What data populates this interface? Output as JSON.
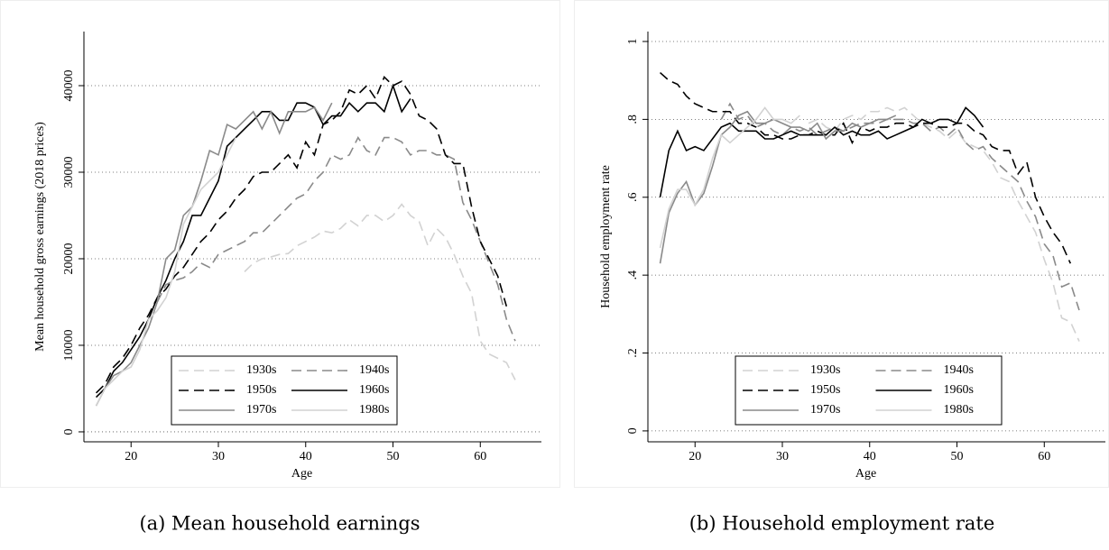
{
  "chart_data": [
    {
      "type": "line",
      "caption": "(a) Mean household earnings",
      "xlabel": "Age",
      "ylabel": "Mean household gross earnings (2018 prices)",
      "x": [
        16,
        17,
        18,
        19,
        20,
        21,
        22,
        23,
        24,
        25,
        26,
        27,
        28,
        29,
        30,
        31,
        32,
        33,
        34,
        35,
        36,
        37,
        38,
        39,
        40,
        41,
        42,
        43,
        44,
        45,
        46,
        47,
        48,
        49,
        50,
        51,
        52,
        53,
        54,
        55,
        56,
        57,
        58,
        59,
        60,
        61,
        62,
        63,
        64
      ],
      "xlim": [
        14.6,
        67
      ],
      "xticks": [
        20,
        30,
        40,
        50,
        60
      ],
      "ylim": [
        -1150,
        46250
      ],
      "yticks": [
        0,
        10000,
        20000,
        30000,
        40000
      ],
      "grid": true,
      "legend": "lower center",
      "series": [
        {
          "name": "1930s",
          "color": "#d2d2d2",
          "style": "dashed",
          "values": [
            null,
            null,
            null,
            null,
            null,
            null,
            null,
            null,
            null,
            null,
            null,
            null,
            null,
            null,
            null,
            null,
            null,
            18500,
            19500,
            20000,
            20200,
            20500,
            20600,
            21500,
            22000,
            22500,
            23200,
            23000,
            23500,
            24500,
            23800,
            25000,
            25000,
            24300,
            25000,
            26300,
            25000,
            24300,
            21500,
            23500,
            22500,
            20500,
            18000,
            16000,
            10500,
            9000,
            8500,
            8000,
            6000
          ]
        },
        {
          "name": "1940s",
          "color": "#8a8a8a",
          "style": "dashed",
          "values": [
            null,
            null,
            null,
            null,
            null,
            null,
            null,
            15000,
            17000,
            17500,
            17800,
            18500,
            19500,
            19000,
            20500,
            21000,
            21500,
            22000,
            23000,
            23000,
            24000,
            25000,
            26000,
            27000,
            27500,
            29000,
            30000,
            32000,
            31500,
            32000,
            34000,
            32500,
            32000,
            34000,
            34000,
            33500,
            32000,
            32500,
            32500,
            32000,
            32000,
            31500,
            26500,
            24500,
            22000,
            19500,
            17000,
            13000,
            10500
          ]
        },
        {
          "name": "1950s",
          "color": "#000000",
          "style": "dashed",
          "values": [
            4500,
            5500,
            7500,
            8500,
            10000,
            12000,
            13500,
            15500,
            16500,
            18000,
            19000,
            20500,
            22000,
            23000,
            24500,
            25500,
            27000,
            28000,
            29500,
            30000,
            30000,
            31000,
            32000,
            30500,
            33500,
            32000,
            35500,
            36000,
            37000,
            39500,
            39000,
            40000,
            38500,
            41000,
            40000,
            40500,
            39000,
            36500,
            36000,
            35000,
            32000,
            31000,
            31000,
            26000,
            22000,
            20000,
            18000,
            14500,
            null
          ]
        },
        {
          "name": "1960s",
          "color": "#000000",
          "style": "solid",
          "values": [
            4000,
            5000,
            7000,
            8000,
            9500,
            11000,
            13000,
            15500,
            17500,
            20000,
            22000,
            25000,
            25000,
            27000,
            29000,
            33000,
            34000,
            35000,
            36000,
            37000,
            37000,
            36000,
            36000,
            38000,
            38000,
            37500,
            35500,
            36500,
            36500,
            38000,
            37000,
            38000,
            38000,
            37000,
            40000,
            37000,
            38500,
            null,
            null,
            null,
            null,
            null,
            null,
            null,
            null,
            null,
            null,
            null,
            null
          ]
        },
        {
          "name": "1970s",
          "color": "#8a8a8a",
          "style": "solid",
          "values": [
            3000,
            5000,
            6500,
            7000,
            8000,
            10000,
            12000,
            15000,
            20000,
            21000,
            25000,
            26000,
            29000,
            32500,
            32000,
            35500,
            35000,
            36000,
            37000,
            35000,
            37000,
            34500,
            37000,
            37000,
            37000,
            37500,
            36000,
            38000,
            null,
            null,
            null,
            null,
            null,
            null,
            null,
            null,
            null,
            null,
            null,
            null,
            null,
            null,
            null,
            null,
            null,
            null,
            null,
            null,
            null
          ]
        },
        {
          "name": "1980s",
          "color": "#d2d2d2",
          "style": "solid",
          "values": [
            3000,
            5000,
            6000,
            7000,
            7500,
            9500,
            13000,
            14000,
            15500,
            18500,
            24000,
            26000,
            28000,
            29000,
            30000,
            32000,
            34000,
            null,
            null,
            null,
            null,
            null,
            null,
            null,
            null,
            null,
            null,
            null,
            null,
            null,
            null,
            null,
            null,
            null,
            null,
            null,
            null,
            null,
            null,
            null,
            null,
            null,
            null,
            null,
            null,
            null,
            null,
            null,
            null
          ]
        }
      ]
    },
    {
      "type": "line",
      "caption": "(b) Household employment rate",
      "xlabel": "Age",
      "ylabel": "Household employment rate",
      "x": [
        16,
        17,
        18,
        19,
        20,
        21,
        22,
        23,
        24,
        25,
        26,
        27,
        28,
        29,
        30,
        31,
        32,
        33,
        34,
        35,
        36,
        37,
        38,
        39,
        40,
        41,
        42,
        43,
        44,
        45,
        46,
        47,
        48,
        49,
        50,
        51,
        52,
        53,
        54,
        55,
        56,
        57,
        58,
        59,
        60,
        61,
        62,
        63,
        64
      ],
      "xlim": [
        14.6,
        67
      ],
      "xticks": [
        20,
        30,
        40,
        50,
        60
      ],
      "ylim": [
        -0.028,
        1.0255
      ],
      "yticks": [
        0,
        {
          "value": 0.2,
          "label": ".2"
        },
        {
          "value": 0.4,
          "label": ".4"
        },
        {
          "value": 0.6,
          "label": ".6"
        },
        {
          "value": 0.8,
          "label": ".8"
        },
        1
      ],
      "grid": true,
      "legend": "lower center",
      "series": [
        {
          "name": "1930s",
          "color": "#d2d2d2",
          "style": "dashed",
          "values": [
            null,
            null,
            null,
            null,
            null,
            null,
            null,
            null,
            null,
            null,
            null,
            null,
            null,
            null,
            null,
            null,
            null,
            0.79,
            0.8,
            0.78,
            0.77,
            0.8,
            0.81,
            0.8,
            0.82,
            0.82,
            0.83,
            0.82,
            0.83,
            0.81,
            0.79,
            0.78,
            0.77,
            0.75,
            0.77,
            0.74,
            0.73,
            0.72,
            0.69,
            0.65,
            0.64,
            0.59,
            0.55,
            0.51,
            0.44,
            0.38,
            0.29,
            0.28,
            0.23
          ]
        },
        {
          "name": "1940s",
          "color": "#8a8a8a",
          "style": "dashed",
          "values": [
            null,
            null,
            null,
            null,
            null,
            null,
            null,
            0.8,
            0.84,
            0.8,
            0.81,
            0.78,
            0.79,
            0.77,
            0.76,
            0.78,
            0.77,
            0.78,
            0.76,
            0.77,
            0.78,
            0.77,
            0.78,
            0.79,
            0.79,
            0.79,
            0.8,
            0.8,
            0.8,
            0.79,
            0.79,
            0.77,
            0.78,
            0.76,
            0.78,
            0.74,
            0.72,
            0.73,
            0.7,
            0.68,
            0.66,
            0.64,
            0.59,
            0.55,
            0.48,
            0.45,
            0.37,
            0.38,
            0.31
          ]
        },
        {
          "name": "1950s",
          "color": "#000000",
          "style": "dashed",
          "values": [
            0.92,
            0.9,
            0.89,
            0.86,
            0.84,
            0.83,
            0.82,
            0.82,
            0.82,
            0.79,
            0.79,
            0.78,
            0.76,
            0.76,
            0.75,
            0.75,
            0.76,
            0.76,
            0.77,
            0.76,
            0.76,
            0.79,
            0.74,
            0.78,
            0.77,
            0.78,
            0.78,
            0.79,
            0.79,
            0.78,
            0.79,
            0.79,
            0.78,
            0.78,
            0.79,
            0.79,
            0.77,
            0.76,
            0.73,
            0.72,
            0.72,
            0.66,
            0.69,
            0.6,
            0.55,
            0.51,
            0.48,
            0.43,
            null
          ]
        },
        {
          "name": "1960s",
          "color": "#000000",
          "style": "solid",
          "values": [
            0.6,
            0.72,
            0.77,
            0.72,
            0.73,
            0.72,
            0.75,
            0.78,
            0.79,
            0.77,
            0.77,
            0.77,
            0.75,
            0.75,
            0.76,
            0.77,
            0.76,
            0.76,
            0.76,
            0.76,
            0.78,
            0.76,
            0.77,
            0.76,
            0.76,
            0.77,
            0.75,
            0.76,
            0.77,
            0.78,
            0.8,
            0.79,
            0.8,
            0.8,
            0.79,
            0.83,
            0.81,
            0.78,
            null,
            null,
            null,
            null,
            null,
            null,
            null,
            null,
            null,
            null,
            null
          ]
        },
        {
          "name": "1970s",
          "color": "#8a8a8a",
          "style": "solid",
          "values": [
            0.43,
            0.56,
            0.61,
            0.64,
            0.58,
            0.61,
            0.68,
            0.76,
            0.78,
            0.81,
            0.82,
            0.79,
            0.79,
            0.8,
            0.79,
            0.78,
            0.78,
            0.77,
            0.79,
            0.75,
            0.77,
            0.77,
            0.79,
            0.78,
            0.79,
            0.8,
            0.8,
            0.81,
            null,
            null,
            null,
            null,
            null,
            null,
            null,
            null,
            null,
            null,
            null,
            null,
            null,
            null,
            null,
            null,
            null,
            null,
            null,
            null,
            null
          ]
        },
        {
          "name": "1980s",
          "color": "#d2d2d2",
          "style": "solid",
          "values": [
            0.47,
            0.57,
            0.62,
            0.62,
            0.58,
            0.62,
            0.7,
            0.76,
            0.74,
            0.76,
            0.78,
            0.8,
            0.83,
            0.8,
            0.8,
            0.79,
            0.81,
            null,
            null,
            null,
            null,
            null,
            null,
            null,
            null,
            null,
            null,
            null,
            null,
            null,
            null,
            null,
            null,
            null,
            null,
            null,
            null,
            null,
            null,
            null,
            null,
            null,
            null,
            null,
            null,
            null,
            null,
            null,
            null
          ]
        }
      ]
    }
  ]
}
